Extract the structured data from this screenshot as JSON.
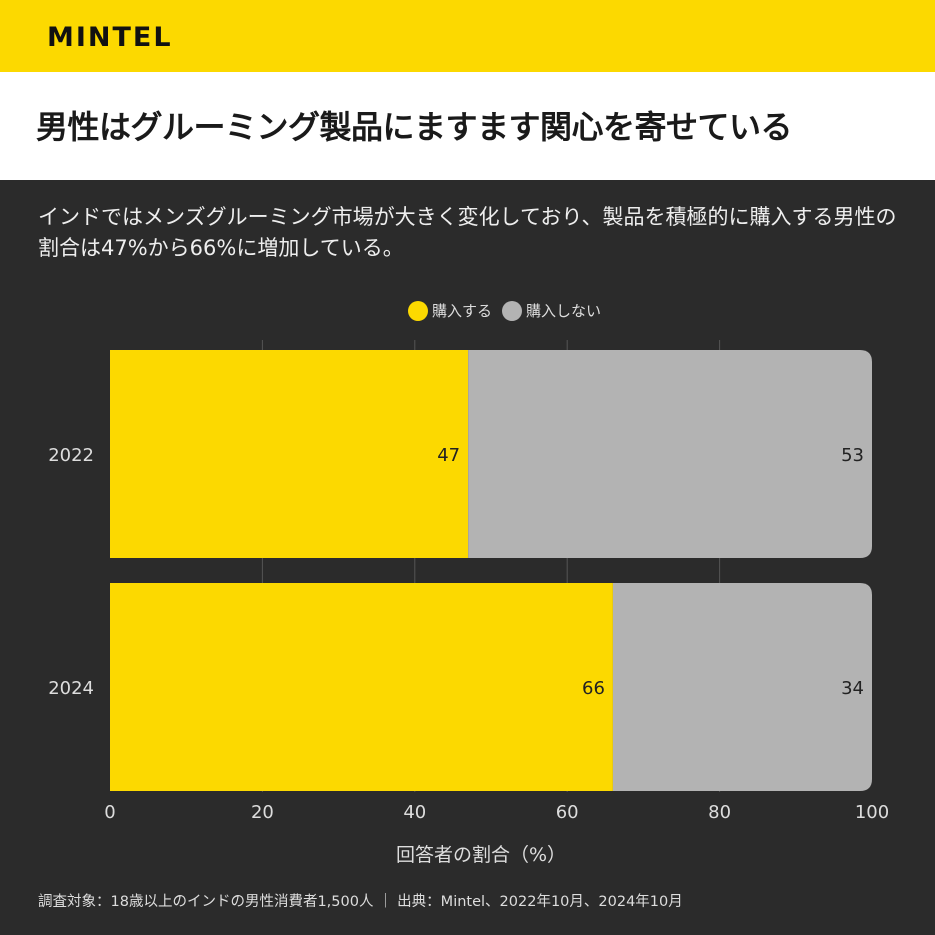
{
  "brand": "MINTEL",
  "headline": "男性はグルーミング製品にますます関心を寄せている",
  "subtitle": "インドではメンズグルーミング市場が大きく変化しており、製品を積極的に購入する男性の割合は47%から66%に増加している。",
  "footer": "調査対象：18歳以上のインドの男性消費者1,500人 ｜ 出典：Mintel、2022年10月、2024年10月",
  "colors": {
    "buy": "#fcd900",
    "not_buy": "#b3b3b3",
    "background": "#2b2b2b"
  },
  "chart_data": {
    "type": "bar",
    "orientation": "horizontal-stacked",
    "categories": [
      "2022",
      "2024"
    ],
    "series": [
      {
        "name": "購入する",
        "values": [
          47,
          66
        ]
      },
      {
        "name": "購入しない",
        "values": [
          53,
          34
        ]
      }
    ],
    "xlabel": "回答者の割合（%）",
    "xlim": [
      0,
      100
    ],
    "xticks": [
      "0",
      "20",
      "40",
      "60",
      "80",
      "100"
    ],
    "legend": "top-center",
    "grid": true
  }
}
